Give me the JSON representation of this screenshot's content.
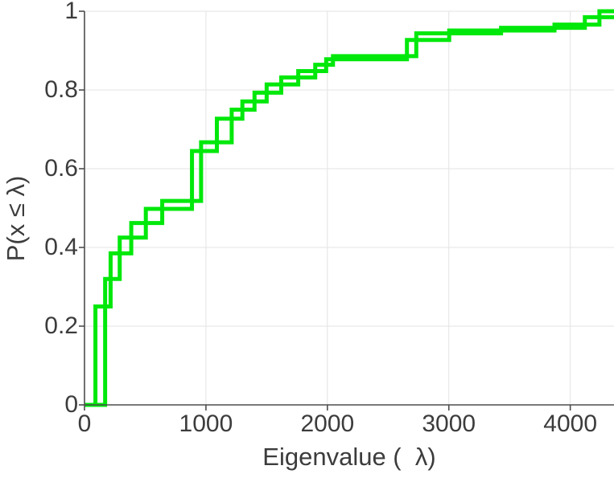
{
  "chart_data": {
    "type": "ecdf-stairs",
    "title": "",
    "xlabel": "Eigenvalue (  λ)",
    "ylabel": "P(x ≤ λ)",
    "xlim": [
      0,
      4360
    ],
    "ylim": [
      0,
      1
    ],
    "x_ticks": [
      0,
      1000,
      2000,
      3000,
      4000
    ],
    "x_tick_labels": [
      "0",
      "1000",
      "2000",
      "3000",
      "4000"
    ],
    "y_ticks": [
      0,
      0.2,
      0.4,
      0.6,
      0.8,
      1
    ],
    "y_tick_labels": [
      "0",
      "0.2",
      "0.4",
      "0.6",
      "0.8",
      "1"
    ],
    "grid": true,
    "legend": "none",
    "line_color": "#00e80b",
    "line_width": 5,
    "axis_color": "#4d4d4d",
    "grid_color": "#e3e3e3",
    "label_color": "#3c3c3c",
    "render_style": "interleaved-stairs (odd/even steps drawn as two overlapping staircases, as in source figure)",
    "steps": [
      [
        90,
        0.25
      ],
      [
        170,
        0.32
      ],
      [
        215,
        0.385
      ],
      [
        290,
        0.425
      ],
      [
        385,
        0.462
      ],
      [
        505,
        0.498
      ],
      [
        640,
        0.518
      ],
      [
        885,
        0.645
      ],
      [
        960,
        0.667
      ],
      [
        1090,
        0.727
      ],
      [
        1212,
        0.75
      ],
      [
        1300,
        0.771
      ],
      [
        1400,
        0.793
      ],
      [
        1500,
        0.814
      ],
      [
        1620,
        0.832
      ],
      [
        1760,
        0.848
      ],
      [
        1900,
        0.864
      ],
      [
        1990,
        0.878
      ],
      [
        2046,
        0.886
      ],
      [
        2655,
        0.927
      ],
      [
        2732,
        0.944
      ],
      [
        3003,
        0.951
      ],
      [
        3430,
        0.958
      ],
      [
        3870,
        0.966
      ],
      [
        4120,
        0.985
      ],
      [
        4240,
        1.0
      ]
    ]
  }
}
